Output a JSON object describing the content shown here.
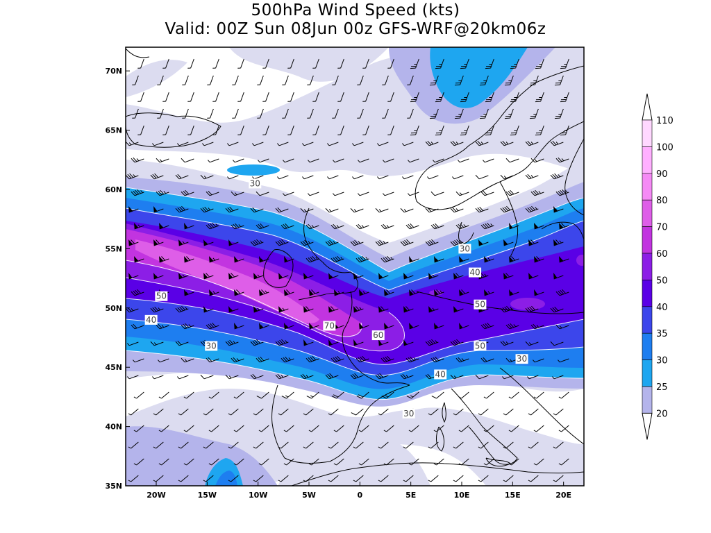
{
  "title": {
    "line1": "500hPa Wind Speed (kts)",
    "line2": "Valid: 00Z Sun 08Jun 00z GFS-WRF@20km06z"
  },
  "map": {
    "region": "Europe / North Atlantic",
    "lon_range": [
      -23,
      22
    ],
    "lat_range": [
      35,
      72
    ],
    "lat_ticks": [
      {
        "value": 70,
        "label": "70N"
      },
      {
        "value": 65,
        "label": "65N"
      },
      {
        "value": 60,
        "label": "60N"
      },
      {
        "value": 55,
        "label": "55N"
      },
      {
        "value": 50,
        "label": "50N"
      },
      {
        "value": 45,
        "label": "45N"
      },
      {
        "value": 40,
        "label": "40N"
      },
      {
        "value": 35,
        "label": "35N"
      }
    ],
    "lon_ticks": [
      {
        "value": -20,
        "label": "20W"
      },
      {
        "value": -15,
        "label": "15W"
      },
      {
        "value": -10,
        "label": "10W"
      },
      {
        "value": -5,
        "label": "5W"
      },
      {
        "value": 0,
        "label": "0"
      },
      {
        "value": 5,
        "label": "5E"
      },
      {
        "value": 10,
        "label": "10E"
      },
      {
        "value": 15,
        "label": "15E"
      },
      {
        "value": 20,
        "label": "20E"
      }
    ],
    "contour_labels": [
      {
        "text": "30",
        "lon": -10.3,
        "lat": 60.5
      },
      {
        "text": "30",
        "lon": 10.3,
        "lat": 55.0
      },
      {
        "text": "40",
        "lon": 11.3,
        "lat": 53.0
      },
      {
        "text": "50",
        "lon": -19.5,
        "lat": 51.0
      },
      {
        "text": "50",
        "lon": 11.8,
        "lat": 50.3
      },
      {
        "text": "40",
        "lon": -20.5,
        "lat": 49.0
      },
      {
        "text": "70",
        "lon": -3.0,
        "lat": 48.5
      },
      {
        "text": "60",
        "lon": 1.8,
        "lat": 47.7
      },
      {
        "text": "30",
        "lon": -14.6,
        "lat": 46.8
      },
      {
        "text": "50",
        "lon": 11.8,
        "lat": 46.8
      },
      {
        "text": "30",
        "lon": 15.9,
        "lat": 45.7
      },
      {
        "text": "40",
        "lon": 7.9,
        "lat": 44.4
      },
      {
        "text": "30",
        "lon": 4.8,
        "lat": 41.1
      }
    ]
  },
  "colorbar": {
    "levels": [
      {
        "label": "110",
        "color": "#ffd8ff"
      },
      {
        "label": "100",
        "color": "#ffb0ff"
      },
      {
        "label": "90",
        "color": "#f58af5"
      },
      {
        "label": "80",
        "color": "#de5ee8"
      },
      {
        "label": "70",
        "color": "#c234e0"
      },
      {
        "label": "60",
        "color": "#8c1ee6"
      },
      {
        "label": "50",
        "color": "#5a00e6"
      },
      {
        "label": "40",
        "color": "#3c46eb"
      },
      {
        "label": "35",
        "color": "#1e7ef0"
      },
      {
        "label": "30",
        "color": "#1ea6f0"
      },
      {
        "label": "25",
        "color": "#b4b4eb"
      },
      {
        "label": "20",
        "color": "#dcdcf0"
      }
    ]
  }
}
